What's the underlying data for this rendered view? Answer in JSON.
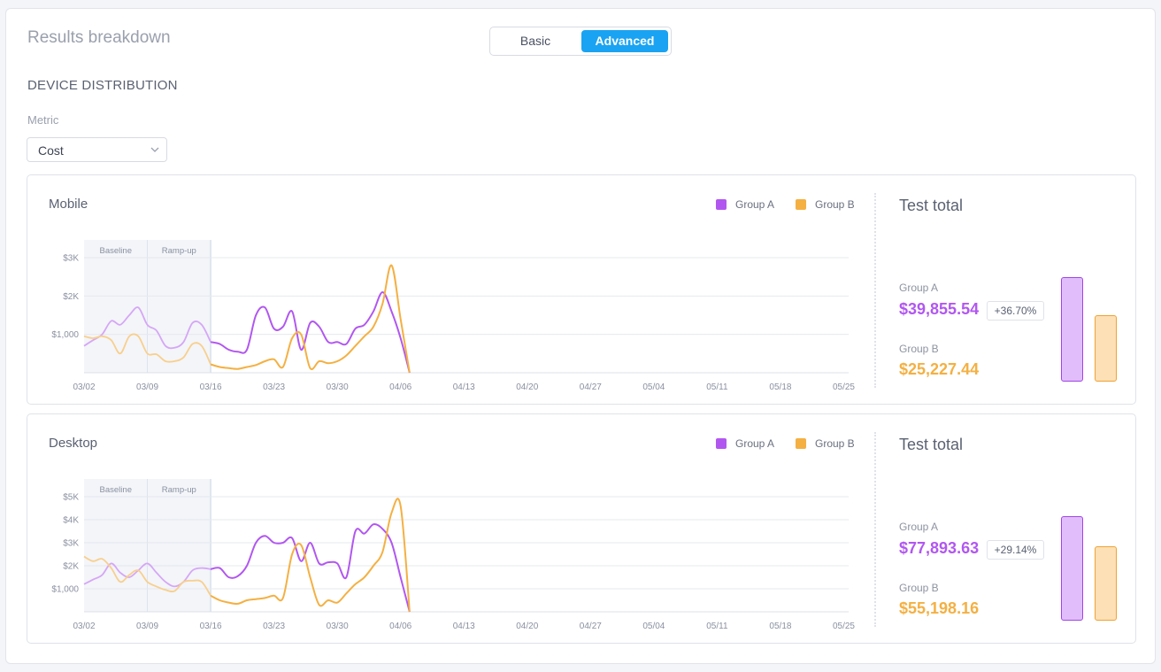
{
  "header": {
    "title": "Results breakdown",
    "toggle": {
      "basic_label": "Basic",
      "advanced_label": "Advanced",
      "selected": "Advanced"
    }
  },
  "section_title": "DEVICE DISTRIBUTION",
  "metric": {
    "label": "Metric",
    "value": "Cost",
    "icon": "chevron-down-icon"
  },
  "colors": {
    "group_a": "#b157f0",
    "group_b": "#f4b042",
    "accent": "#1aa3f2"
  },
  "phase_labels": {
    "baseline": "Baseline",
    "rampup": "Ramp-up"
  },
  "panels": [
    {
      "title": "Mobile",
      "legend": {
        "a": "Group A",
        "b": "Group B"
      },
      "test_total": {
        "title": "Test total",
        "a_label": "Group A",
        "a_value": "$39,855.54",
        "lift": "+36.70%",
        "b_label": "Group B",
        "b_value": "$25,227.44"
      },
      "totals_bar_values": [
        39855.54,
        25227.44
      ]
    },
    {
      "title": "Desktop",
      "legend": {
        "a": "Group A",
        "b": "Group B"
      },
      "test_total": {
        "title": "Test total",
        "a_label": "Group A",
        "a_value": "$77,893.63",
        "lift": "+29.14%",
        "b_label": "Group B",
        "b_value": "$55,198.16"
      },
      "totals_bar_values": [
        77893.63,
        55198.16
      ]
    }
  ],
  "chart_data": [
    {
      "type": "line",
      "title": "Mobile",
      "x": [
        "03/02",
        "03/03",
        "03/04",
        "03/05",
        "03/06",
        "03/07",
        "03/08",
        "03/09",
        "03/10",
        "03/11",
        "03/12",
        "03/13",
        "03/14",
        "03/15",
        "03/16",
        "03/17",
        "03/18",
        "03/19",
        "03/20",
        "03/21",
        "03/22",
        "03/23",
        "03/24",
        "03/25",
        "03/26",
        "03/27",
        "03/28",
        "03/29",
        "03/30",
        "03/31",
        "04/01",
        "04/02",
        "04/03",
        "04/04",
        "04/05",
        "04/06",
        "04/07"
      ],
      "x_ticks": [
        "03/02",
        "03/09",
        "03/16",
        "03/23",
        "03/30",
        "04/06",
        "04/13",
        "04/20",
        "04/27",
        "05/04",
        "05/11",
        "05/18",
        "05/25"
      ],
      "y_ticks": [
        "$3K",
        "$2K",
        "$1,000"
      ],
      "ylim": [
        0,
        3000
      ],
      "phases": [
        {
          "label": "Baseline",
          "from": "03/02",
          "to": "03/09"
        },
        {
          "label": "Ramp-up",
          "from": "03/09",
          "to": "03/16"
        }
      ],
      "series": [
        {
          "name": "Group A",
          "values": [
            700,
            850,
            1000,
            1350,
            1250,
            1500,
            1700,
            1250,
            1100,
            700,
            650,
            800,
            1300,
            1250,
            800,
            750,
            600,
            550,
            600,
            1500,
            1700,
            1150,
            1200,
            1600,
            600,
            1300,
            1200,
            800,
            800,
            750,
            1150,
            1250,
            1600,
            2100,
            1600,
            900,
            0
          ]
        },
        {
          "name": "Group B",
          "values": [
            950,
            900,
            950,
            850,
            500,
            950,
            950,
            500,
            480,
            300,
            300,
            400,
            750,
            700,
            220,
            150,
            120,
            100,
            150,
            200,
            300,
            350,
            150,
            900,
            1000,
            120,
            300,
            250,
            300,
            450,
            700,
            950,
            1200,
            1800,
            2800,
            1400,
            0
          ]
        }
      ]
    },
    {
      "type": "line",
      "title": "Desktop",
      "x": [
        "03/02",
        "03/03",
        "03/04",
        "03/05",
        "03/06",
        "03/07",
        "03/08",
        "03/09",
        "03/10",
        "03/11",
        "03/12",
        "03/13",
        "03/14",
        "03/15",
        "03/16",
        "03/17",
        "03/18",
        "03/19",
        "03/20",
        "03/21",
        "03/22",
        "03/23",
        "03/24",
        "03/25",
        "03/26",
        "03/27",
        "03/28",
        "03/29",
        "03/30",
        "03/31",
        "04/01",
        "04/02",
        "04/03",
        "04/04",
        "04/05",
        "04/06",
        "04/07"
      ],
      "x_ticks": [
        "03/02",
        "03/09",
        "03/16",
        "03/23",
        "03/30",
        "04/06",
        "04/13",
        "04/20",
        "04/27",
        "05/04",
        "05/11",
        "05/18",
        "05/25"
      ],
      "y_ticks": [
        "$5K",
        "$4K",
        "$3K",
        "$2K",
        "$1,000"
      ],
      "ylim": [
        0,
        5000
      ],
      "phases": [
        {
          "label": "Baseline",
          "from": "03/02",
          "to": "03/09"
        },
        {
          "label": "Ramp-up",
          "from": "03/09",
          "to": "03/16"
        }
      ],
      "series": [
        {
          "name": "Group A",
          "values": [
            1200,
            1400,
            1600,
            2100,
            1700,
            1500,
            1800,
            2100,
            1700,
            1300,
            1100,
            1300,
            1800,
            1900,
            1850,
            1900,
            1500,
            1550,
            2000,
            3000,
            3300,
            3000,
            3000,
            3200,
            2200,
            3000,
            2100,
            2150,
            2100,
            1500,
            3500,
            3400,
            3800,
            3600,
            3000,
            1500,
            0
          ]
        },
        {
          "name": "Group B",
          "values": [
            2400,
            2200,
            2300,
            1900,
            1300,
            1600,
            1800,
            1300,
            1100,
            950,
            900,
            1300,
            1350,
            1300,
            700,
            500,
            400,
            350,
            500,
            550,
            600,
            700,
            600,
            2500,
            2900,
            1500,
            300,
            500,
            400,
            800,
            1200,
            1500,
            2000,
            2600,
            4300,
            4600,
            0
          ]
        }
      ]
    }
  ]
}
